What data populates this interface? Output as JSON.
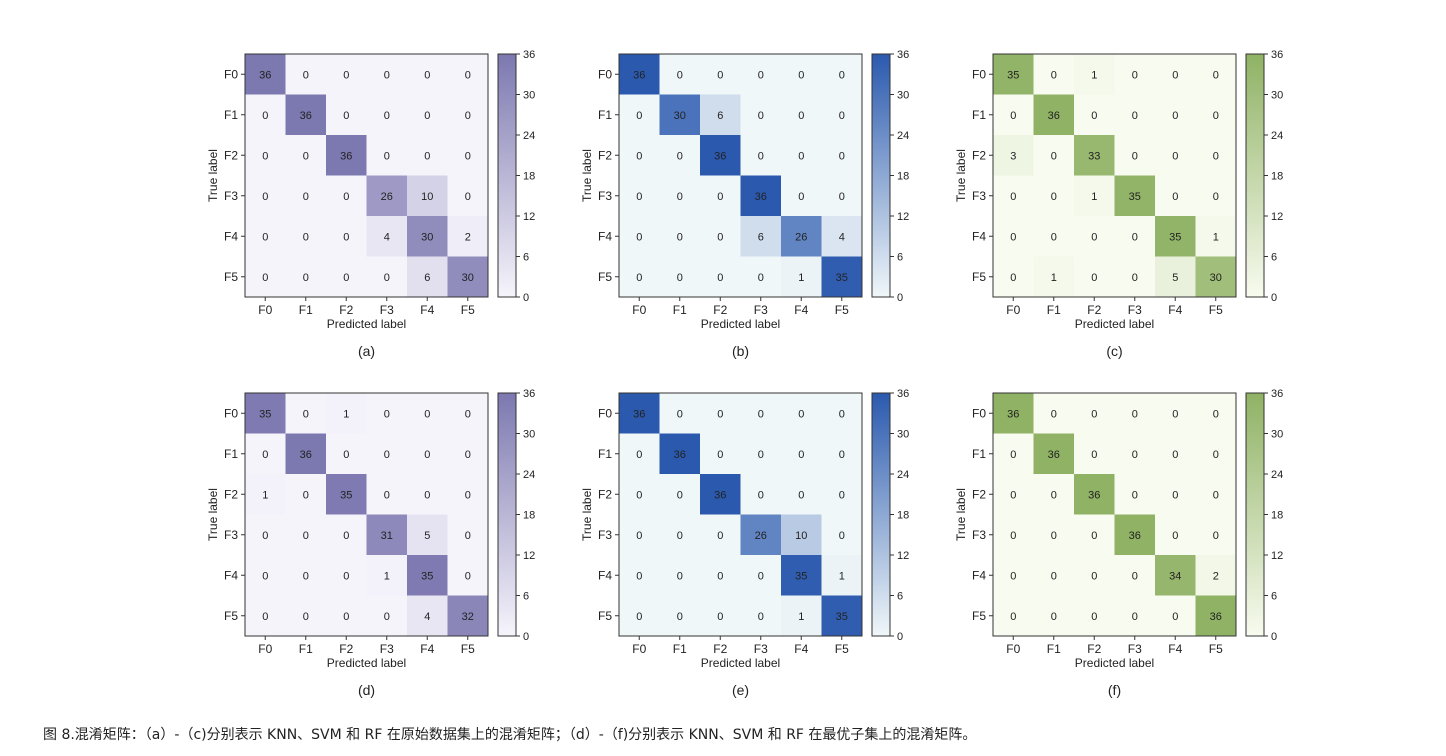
{
  "figure": {
    "caption": "图 8.混淆矩阵：（a）-（c)分别表示 KNN、SVM 和 RF 在原始数据集上的混淆矩阵；（d）-（f)分别表示 KNN、SVM 和 RF 在最优子集上的混淆矩阵。"
  },
  "chart_data": [
    {
      "type": "heatmap",
      "panel": "(a)",
      "title": "",
      "xlabel": "Predicted label",
      "ylabel": "True label",
      "x_categories": [
        "F0",
        "F1",
        "F2",
        "F3",
        "F4",
        "F5"
      ],
      "y_categories": [
        "F0",
        "F1",
        "F2",
        "F3",
        "F4",
        "F5"
      ],
      "colorbar": {
        "range": [
          0,
          36
        ],
        "ticks": [
          "0",
          "6",
          "12",
          "18",
          "24",
          "30",
          "36"
        ],
        "low_color": "#f6f4fb",
        "high_color": "#7c78b0"
      },
      "values": [
        [
          36,
          0,
          0,
          0,
          0,
          0
        ],
        [
          0,
          36,
          0,
          0,
          0,
          0
        ],
        [
          0,
          0,
          36,
          0,
          0,
          0
        ],
        [
          0,
          0,
          0,
          26,
          10,
          0
        ],
        [
          0,
          0,
          0,
          4,
          30,
          2
        ],
        [
          0,
          0,
          0,
          0,
          6,
          30
        ]
      ]
    },
    {
      "type": "heatmap",
      "panel": "(b)",
      "title": "",
      "xlabel": "Predicted label",
      "ylabel": "True label",
      "x_categories": [
        "F0",
        "F1",
        "F2",
        "F3",
        "F4",
        "F5"
      ],
      "y_categories": [
        "F0",
        "F1",
        "F2",
        "F3",
        "F4",
        "F5"
      ],
      "colorbar": {
        "range": [
          0,
          36
        ],
        "ticks": [
          "0",
          "6",
          "12",
          "18",
          "24",
          "30",
          "36"
        ],
        "low_color": "#f0f7f9",
        "high_color": "#2a59ae"
      },
      "values": [
        [
          36,
          0,
          0,
          0,
          0,
          0
        ],
        [
          0,
          30,
          6,
          0,
          0,
          0
        ],
        [
          0,
          0,
          36,
          0,
          0,
          0
        ],
        [
          0,
          0,
          0,
          36,
          0,
          0
        ],
        [
          0,
          0,
          0,
          6,
          26,
          4
        ],
        [
          0,
          0,
          0,
          0,
          1,
          35
        ]
      ]
    },
    {
      "type": "heatmap",
      "panel": "(c)",
      "title": "",
      "xlabel": "Predicted label",
      "ylabel": "True label",
      "x_categories": [
        "F0",
        "F1",
        "F2",
        "F3",
        "F4",
        "F5"
      ],
      "y_categories": [
        "F0",
        "F1",
        "F2",
        "F3",
        "F4",
        "F5"
      ],
      "colorbar": {
        "range": [
          0,
          36
        ],
        "ticks": [
          "0",
          "6",
          "12",
          "18",
          "24",
          "30",
          "36"
        ],
        "low_color": "#f8fbef",
        "high_color": "#8fb264"
      },
      "values": [
        [
          35,
          0,
          1,
          0,
          0,
          0
        ],
        [
          0,
          36,
          0,
          0,
          0,
          0
        ],
        [
          3,
          0,
          33,
          0,
          0,
          0
        ],
        [
          0,
          0,
          1,
          35,
          0,
          0
        ],
        [
          0,
          0,
          0,
          0,
          35,
          1
        ],
        [
          0,
          1,
          0,
          0,
          5,
          30
        ]
      ]
    },
    {
      "type": "heatmap",
      "panel": "(d)",
      "title": "",
      "xlabel": "Predicted label",
      "ylabel": "True label",
      "x_categories": [
        "F0",
        "F1",
        "F2",
        "F3",
        "F4",
        "F5"
      ],
      "y_categories": [
        "F0",
        "F1",
        "F2",
        "F3",
        "F4",
        "F5"
      ],
      "colorbar": {
        "range": [
          0,
          36
        ],
        "ticks": [
          "0",
          "6",
          "12",
          "18",
          "24",
          "30",
          "36"
        ],
        "low_color": "#f6f4fb",
        "high_color": "#7c78b0"
      },
      "values": [
        [
          35,
          0,
          1,
          0,
          0,
          0
        ],
        [
          0,
          36,
          0,
          0,
          0,
          0
        ],
        [
          1,
          0,
          35,
          0,
          0,
          0
        ],
        [
          0,
          0,
          0,
          31,
          5,
          0
        ],
        [
          0,
          0,
          0,
          1,
          35,
          0
        ],
        [
          0,
          0,
          0,
          0,
          4,
          32
        ]
      ]
    },
    {
      "type": "heatmap",
      "panel": "(e)",
      "title": "",
      "xlabel": "Predicted label",
      "ylabel": "True label",
      "x_categories": [
        "F0",
        "F1",
        "F2",
        "F3",
        "F4",
        "F5"
      ],
      "y_categories": [
        "F0",
        "F1",
        "F2",
        "F3",
        "F4",
        "F5"
      ],
      "colorbar": {
        "range": [
          0,
          36
        ],
        "ticks": [
          "0",
          "6",
          "12",
          "18",
          "24",
          "30",
          "36"
        ],
        "low_color": "#f0f7f9",
        "high_color": "#2a59ae"
      },
      "values": [
        [
          36,
          0,
          0,
          0,
          0,
          0
        ],
        [
          0,
          36,
          0,
          0,
          0,
          0
        ],
        [
          0,
          0,
          36,
          0,
          0,
          0
        ],
        [
          0,
          0,
          0,
          26,
          10,
          0
        ],
        [
          0,
          0,
          0,
          0,
          35,
          1
        ],
        [
          0,
          0,
          0,
          0,
          1,
          35
        ]
      ]
    },
    {
      "type": "heatmap",
      "panel": "(f)",
      "title": "",
      "xlabel": "Predicted label",
      "ylabel": "True label",
      "x_categories": [
        "F0",
        "F1",
        "F2",
        "F3",
        "F4",
        "F5"
      ],
      "y_categories": [
        "F0",
        "F1",
        "F2",
        "F3",
        "F4",
        "F5"
      ],
      "colorbar": {
        "range": [
          0,
          36
        ],
        "ticks": [
          "0",
          "6",
          "12",
          "18",
          "24",
          "30",
          "36"
        ],
        "low_color": "#f8fbef",
        "high_color": "#8fb264"
      },
      "values": [
        [
          36,
          0,
          0,
          0,
          0,
          0
        ],
        [
          0,
          36,
          0,
          0,
          0,
          0
        ],
        [
          0,
          0,
          36,
          0,
          0,
          0
        ],
        [
          0,
          0,
          0,
          36,
          0,
          0
        ],
        [
          0,
          0,
          0,
          0,
          34,
          2
        ],
        [
          0,
          0,
          0,
          0,
          0,
          36
        ]
      ]
    }
  ]
}
